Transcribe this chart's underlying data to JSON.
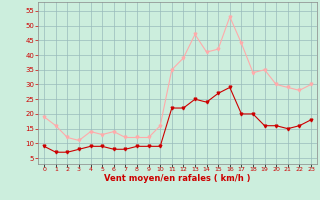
{
  "hours": [
    0,
    1,
    2,
    3,
    4,
    5,
    6,
    7,
    8,
    9,
    10,
    11,
    12,
    13,
    14,
    15,
    16,
    17,
    18,
    19,
    20,
    21,
    22,
    23
  ],
  "wind_avg": [
    9,
    7,
    7,
    8,
    9,
    9,
    8,
    8,
    9,
    9,
    9,
    22,
    22,
    25,
    24,
    27,
    29,
    20,
    20,
    16,
    16,
    15,
    16,
    18
  ],
  "wind_gust": [
    19,
    16,
    12,
    11,
    14,
    13,
    14,
    12,
    12,
    12,
    16,
    35,
    39,
    47,
    41,
    42,
    53,
    44,
    34,
    35,
    30,
    29,
    28,
    30
  ],
  "color_avg": "#cc0000",
  "color_gust": "#ffaaaa",
  "bg_color": "#cceedd",
  "grid_color": "#99bbbb",
  "xlabel": "Vent moyen/en rafales ( km/h )",
  "xlabel_color": "#cc0000",
  "yticks": [
    5,
    10,
    15,
    20,
    25,
    30,
    35,
    40,
    45,
    50,
    55
  ],
  "ylim": [
    3,
    58
  ],
  "xlim": [
    -0.5,
    23.5
  ],
  "marker_size": 2,
  "linewidth": 0.8
}
